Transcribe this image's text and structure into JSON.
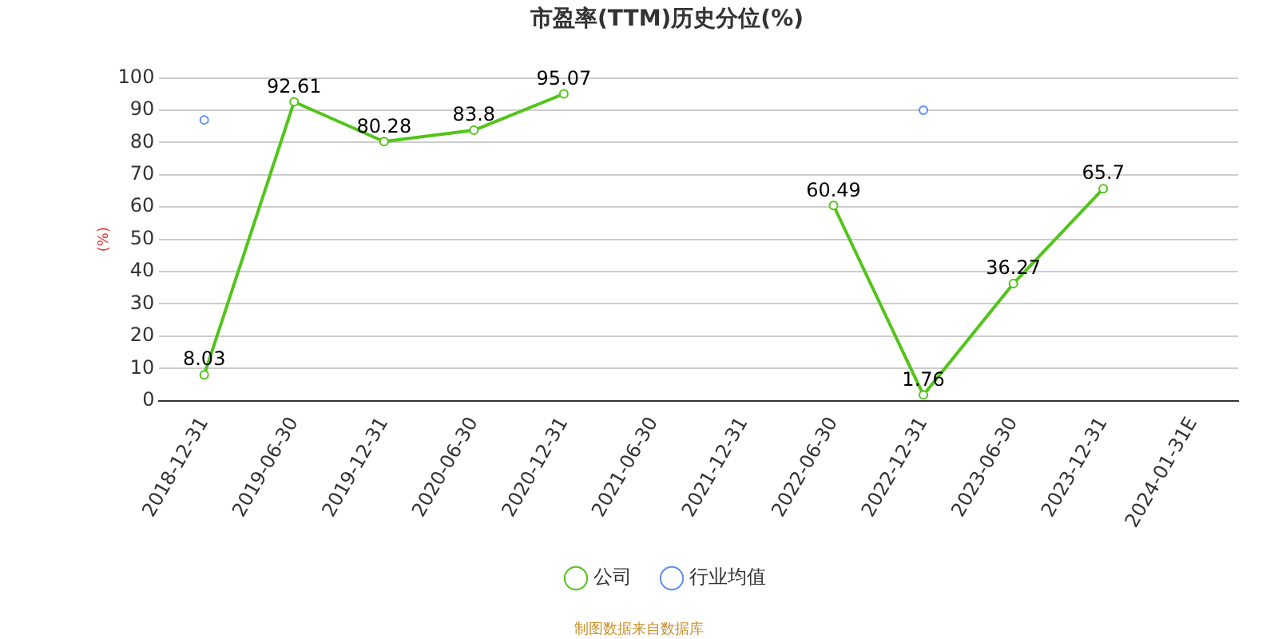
{
  "chart_data": {
    "type": "line",
    "title": "市盈率(TTM)历史分位(%)",
    "ylabel": "(%)",
    "categories": [
      "2018-12-31",
      "2019-06-30",
      "2019-12-31",
      "2020-06-30",
      "2020-12-31",
      "2021-06-30",
      "2021-12-31",
      "2022-06-30",
      "2022-12-31",
      "2023-06-30",
      "2023-12-31",
      "2024-01-31E"
    ],
    "series": [
      {
        "name": "公司",
        "color": "#52c41a",
        "values": [
          8.03,
          92.61,
          80.28,
          83.8,
          95.07,
          null,
          null,
          60.49,
          1.76,
          36.27,
          65.7,
          null
        ],
        "data_labels": true
      },
      {
        "name": "行业均值",
        "type": "scatter",
        "color": "#5b8ff9",
        "values": [
          87,
          null,
          null,
          null,
          null,
          null,
          null,
          null,
          90,
          null,
          null,
          null
        ]
      }
    ],
    "ylim": [
      0,
      100
    ],
    "yticks": [
      0,
      10,
      20,
      30,
      40,
      50,
      60,
      70,
      80,
      90,
      100
    ],
    "grid": "y",
    "legend": "bottom",
    "marker": "circle",
    "annotations": [
      "制图数据来自数据库"
    ]
  }
}
